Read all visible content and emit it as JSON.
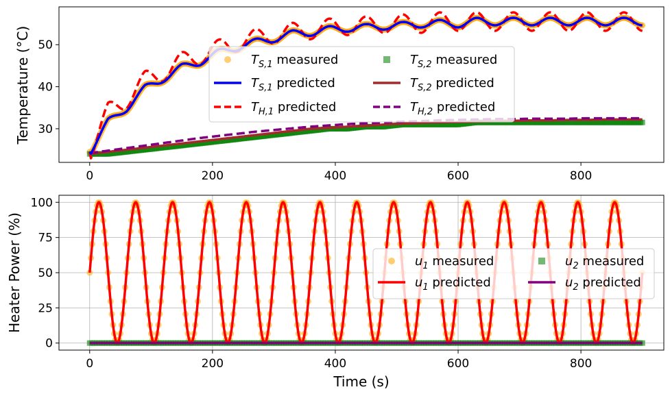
{
  "chart_data": [
    {
      "type": "line",
      "ylabel": "Temperature (°C)",
      "xlabel": "",
      "xlim": [
        -50,
        935
      ],
      "ylim": [
        22,
        59
      ],
      "xticks": [
        0,
        200,
        400,
        600,
        800
      ],
      "yticks": [
        30,
        40,
        50
      ],
      "grid": false,
      "legend": {
        "placement": "center",
        "columns": 2
      },
      "series": [
        {
          "name": "T_S,1 measured",
          "label_main": "T",
          "label_sub": "S,1",
          "label_rest": " measured",
          "kind": "scatter",
          "marker": "circle",
          "color": "#FFA500"
        },
        {
          "name": "T_S,2 measured",
          "label_main": "T",
          "label_sub": "S,2",
          "label_rest": " measured",
          "kind": "scatter",
          "marker": "square",
          "color": "#008000"
        },
        {
          "name": "T_S,1 predicted",
          "label_main": "T",
          "label_sub": "S,1",
          "label_rest": " predicted",
          "kind": "line",
          "dash": "solid",
          "color": "#0000FF"
        },
        {
          "name": "T_S,2 predicted",
          "label_main": "T",
          "label_sub": "S,2",
          "label_rest": " predicted",
          "kind": "line",
          "dash": "solid",
          "color": "#A52A2A"
        },
        {
          "name": "T_H,1 predicted",
          "label_main": "T",
          "label_sub": "H,1",
          "label_rest": " predicted",
          "kind": "line",
          "dash": "dashed",
          "color": "#FF0000"
        },
        {
          "name": "T_H,2 predicted",
          "label_main": "T",
          "label_sub": "H,2",
          "label_rest": " predicted",
          "kind": "line",
          "dash": "dashed",
          "color": "#800080"
        }
      ],
      "curves": {
        "x": [
          0,
          30,
          60,
          90,
          120,
          150,
          180,
          210,
          240,
          270,
          300,
          330,
          360,
          390,
          420,
          450,
          480,
          510,
          540,
          570,
          600,
          630,
          660,
          690,
          720,
          750,
          780,
          810,
          840,
          870,
          900
        ],
        "TS1": [
          24.5,
          31.5,
          35.0,
          39.5,
          42.0,
          44.5,
          46.0,
          48.0,
          49.5,
          50.5,
          51.5,
          52.5,
          53.0,
          53.5,
          54.0,
          54.0,
          54.5,
          54.5,
          55.0,
          55.0,
          55.0,
          55.5,
          55.5,
          55.5,
          55.5,
          55.5,
          55.5,
          55.5,
          55.5,
          55.5,
          55.5
        ],
        "TH1": [
          24.5,
          34.0,
          37.0,
          41.5,
          43.5,
          46.0,
          47.5,
          49.0,
          50.5,
          51.5,
          52.5,
          53.0,
          53.5,
          54.0,
          54.5,
          54.5,
          55.0,
          55.0,
          55.0,
          55.5,
          55.5,
          55.5,
          55.5,
          55.5,
          55.5,
          55.5,
          55.5,
          55.5,
          55.5,
          55.5,
          55.5
        ],
        "TS2": [
          24.0,
          24.5,
          25.0,
          25.5,
          26.0,
          26.5,
          27.0,
          27.5,
          28.0,
          28.5,
          29.0,
          29.5,
          30.0,
          30.2,
          30.5,
          30.7,
          31.0,
          31.2,
          31.4,
          31.5,
          31.6,
          31.7,
          31.8,
          31.9,
          32.0,
          32.0,
          32.1,
          32.1,
          32.2,
          32.2,
          32.2
        ],
        "TH2": [
          24.2,
          24.8,
          25.4,
          26.0,
          26.6,
          27.2,
          27.8,
          28.3,
          28.8,
          29.3,
          29.7,
          30.1,
          30.5,
          30.8,
          31.1,
          31.3,
          31.5,
          31.7,
          31.8,
          32.0,
          32.1,
          32.2,
          32.3,
          32.3,
          32.4,
          32.4,
          32.4,
          32.5,
          32.5,
          32.5,
          32.5
        ],
        "TS2_measured": [
          24.0,
          24.0,
          24.5,
          25.0,
          25.5,
          26.0,
          26.5,
          27.0,
          27.5,
          28.0,
          28.5,
          29.0,
          29.5,
          30.0,
          30.0,
          30.5,
          30.5,
          31.0,
          31.0,
          31.0,
          31.0,
          31.5,
          31.5,
          31.5,
          31.5,
          31.5,
          31.5,
          31.5,
          31.5,
          31.5,
          31.5
        ]
      }
    },
    {
      "type": "line",
      "ylabel": "Heater Power (%)",
      "xlabel": "Time (s)",
      "xlim": [
        -50,
        935
      ],
      "ylim": [
        -5,
        105
      ],
      "xticks": [
        0,
        200,
        400,
        600,
        800
      ],
      "yticks": [
        0,
        25,
        50,
        75,
        100
      ],
      "grid": true,
      "legend": {
        "placement": "center-right",
        "columns": 2
      },
      "series": [
        {
          "name": "u1 measured",
          "label_main": "u",
          "label_sub": "1",
          "label_rest": " measured",
          "kind": "scatter",
          "marker": "circle",
          "color": "#FFA500"
        },
        {
          "name": "u2 measured",
          "label_main": "u",
          "label_sub": "2",
          "label_rest": " measured",
          "kind": "scatter",
          "marker": "square",
          "color": "#008000"
        },
        {
          "name": "u1 predicted",
          "label_main": "u",
          "label_sub": "1",
          "label_rest": " predicted",
          "kind": "line",
          "dash": "solid",
          "color": "#FF0000"
        },
        {
          "name": "u2 predicted",
          "label_main": "u",
          "label_sub": "2",
          "label_rest": " predicted",
          "kind": "line",
          "dash": "solid",
          "color": "#800080"
        }
      ],
      "u1": {
        "offset": 50,
        "amplitude": 50,
        "period_s": 60,
        "x_start": 0,
        "x_end": 900
      },
      "u2": {
        "value": 0,
        "x_start": 0,
        "x_end": 900
      }
    }
  ]
}
